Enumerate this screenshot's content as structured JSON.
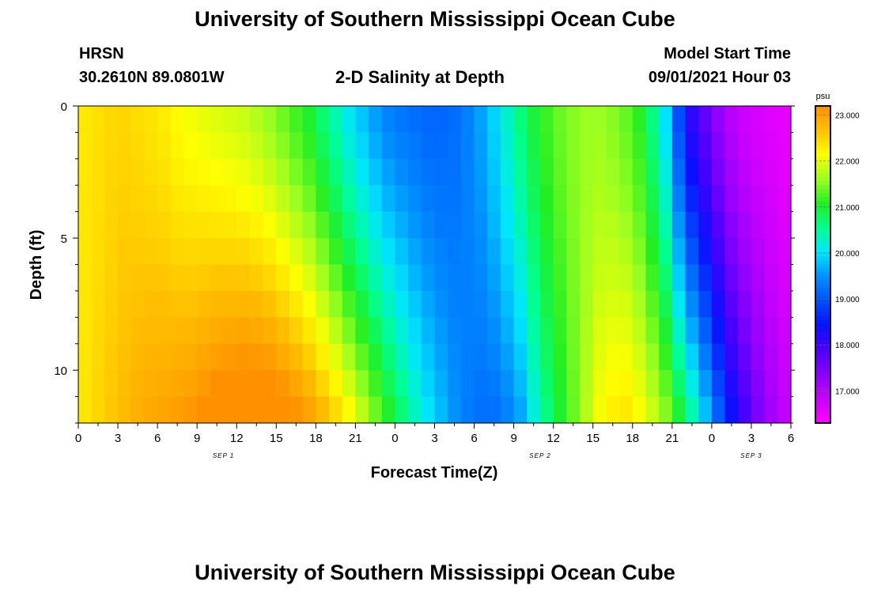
{
  "title": "University of Southern Mississippi Ocean Cube",
  "footer_title": "University of Southern Mississippi Ocean Cube",
  "station": "HRSN",
  "location": "30.2610N  89.0801W",
  "subtitle": "2-D Salinity at Depth",
  "model_start_label": "Model Start Time",
  "model_start_value": "09/01/2021 Hour 03",
  "chart_data": {
    "type": "heatmap",
    "title": "2-D Salinity at Depth",
    "xlabel": "Forecast Time(Z)",
    "ylabel": "Depth (ft)",
    "x_tick_labels": [
      "0",
      "3",
      "6",
      "9",
      "12",
      "15",
      "18",
      "21",
      "0",
      "3",
      "6",
      "9",
      "12",
      "15",
      "18",
      "21",
      "0",
      "3",
      "6"
    ],
    "x_range_hours": [
      0,
      54
    ],
    "date_labels": [
      {
        "text": "SEP 1",
        "hour": 11
      },
      {
        "text": "SEP 2",
        "hour": 35
      },
      {
        "text": "SEP 3",
        "hour": 51
      }
    ],
    "y_tick_labels": [
      "0",
      "5",
      "10"
    ],
    "y_range_ft": [
      0,
      12
    ],
    "colorbar": {
      "unit": "psu",
      "range": [
        16.3,
        23.2
      ],
      "tick_labels": [
        "23.000",
        "22.000",
        "21.000",
        "20.000",
        "19.000",
        "18.000",
        "17.000"
      ],
      "tick_values": [
        23,
        22,
        21,
        20,
        19,
        18,
        17
      ],
      "colors": [
        "#ff00ff",
        "#c800ff",
        "#8c00ff",
        "#4a00ff",
        "#0a10ff",
        "#0050ff",
        "#0090ff",
        "#00e6ff",
        "#00ff90",
        "#22ee22",
        "#9cff20",
        "#ffff00",
        "#ffc000",
        "#ff9000"
      ]
    },
    "salinity_surface_psu": [
      22.3,
      22.4,
      22.5,
      22.4,
      22.3,
      22.1,
      22.0,
      21.9,
      21.8,
      21.6,
      21.3,
      21.0,
      20.5,
      20.0,
      19.6,
      19.3,
      19.2,
      19.1,
      19.2,
      19.5,
      20.0,
      20.6,
      21.1,
      21.4,
      21.6,
      21.6,
      21.4,
      21.0,
      20.0,
      18.3,
      17.6,
      17.0,
      16.7,
      16.6,
      16.5
    ],
    "salinity_bottom_psu": [
      22.3,
      22.5,
      22.7,
      22.9,
      23.0,
      23.1,
      23.3,
      23.5,
      23.6,
      23.6,
      23.4,
      23.1,
      22.7,
      22.2,
      21.6,
      21.0,
      20.4,
      19.9,
      19.5,
      19.2,
      19.2,
      19.5,
      20.4,
      21.0,
      21.6,
      22.2,
      22.4,
      22.1,
      21.6,
      20.8,
      19.8,
      18.6,
      17.8,
      17.2,
      16.8
    ]
  }
}
